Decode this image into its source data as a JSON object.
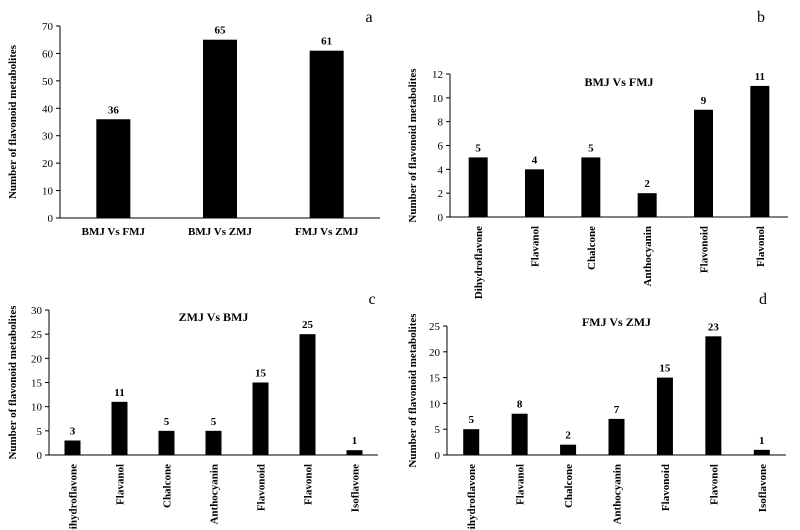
{
  "chart_data": [
    {
      "type": "bar",
      "panel_label": "a",
      "title": "",
      "categories": [
        "BMJ Vs FMJ",
        "BMJ Vs ZMJ",
        "FMJ Vs ZMJ"
      ],
      "values": [
        36,
        65,
        61
      ],
      "ylabel": "Number of flavonoid metabolites",
      "xlabel": "",
      "ylim": [
        0,
        70
      ],
      "yticks": [
        0,
        10,
        20,
        30,
        40,
        50,
        60,
        70
      ],
      "color": "#000000"
    },
    {
      "type": "bar",
      "panel_label": "b",
      "title": "BMJ Vs FMJ",
      "categories": [
        "Dihydroflavone",
        "Flavanol",
        "Chalcone",
        "Anthocyanin",
        "Flavonoid",
        "Flavonol"
      ],
      "values": [
        5,
        4,
        5,
        2,
        9,
        11
      ],
      "ylabel": "Number of flavonoid metabolites",
      "xlabel": "",
      "ylim": [
        0,
        12
      ],
      "yticks": [
        0,
        2,
        4,
        6,
        8,
        10,
        12
      ],
      "color": "#000000"
    },
    {
      "type": "bar",
      "panel_label": "c",
      "title": "ZMJ Vs BMJ",
      "categories": [
        "Dihydroflavone",
        "Flavanol",
        "Chalcone",
        "Anthocyanin",
        "Flavonoid",
        "Flavonol",
        "Isoflavone"
      ],
      "values": [
        3,
        11,
        5,
        5,
        15,
        25,
        1
      ],
      "ylabel": "Number of flavonoid metabolites",
      "xlabel": "",
      "ylim": [
        0,
        30
      ],
      "yticks": [
        0,
        5,
        10,
        15,
        20,
        25,
        30
      ],
      "color": "#000000"
    },
    {
      "type": "bar",
      "panel_label": "d",
      "title": "FMJ Vs ZMJ",
      "categories": [
        "Dihydroflavone",
        "Flavanol",
        "Chalcone",
        "Anthocyanin",
        "Flavonoid",
        "Flavonol",
        "Isoflavone"
      ],
      "values": [
        5,
        8,
        2,
        7,
        15,
        23,
        1
      ],
      "ylabel": "Number of flavonoid metabolites",
      "xlabel": "",
      "ylim": [
        0,
        25
      ],
      "yticks": [
        0,
        5,
        10,
        15,
        20,
        25
      ],
      "color": "#000000"
    }
  ]
}
